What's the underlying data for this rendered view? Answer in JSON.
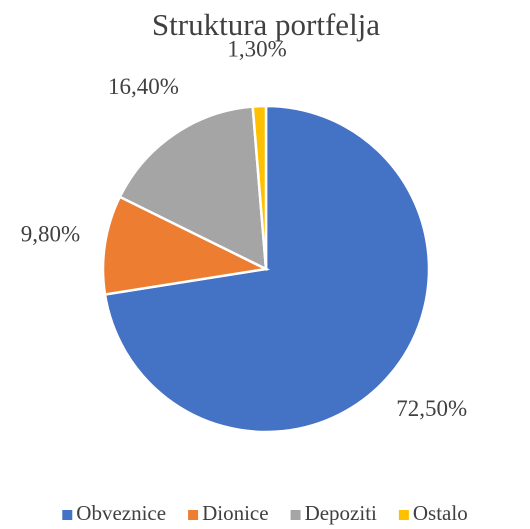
{
  "chart_data": {
    "type": "pie",
    "title": "Struktura portfelja",
    "categories": [
      "Obveznice",
      "Dionice",
      "Depoziti",
      "Ostalo"
    ],
    "values": [
      72.5,
      9.8,
      16.4,
      1.3
    ],
    "value_labels": [
      "72,50%",
      "9,80%",
      "16,40%",
      "1,30%"
    ],
    "colors": [
      "#4472c4",
      "#ed7d31",
      "#a5a5a5",
      "#ffc000"
    ],
    "legend": "bottom"
  }
}
